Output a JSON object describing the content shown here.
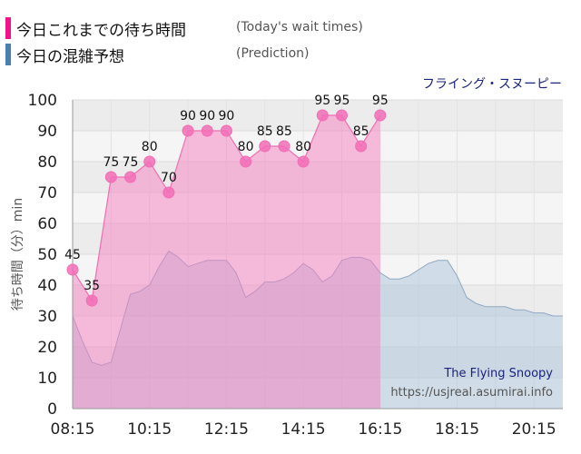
{
  "legend": {
    "actual_jp": "今日これまでの待ち時間",
    "actual_en": "(Today's wait times)",
    "actual_color": "#f0138a",
    "prediction_jp": "今日の混雑予想",
    "prediction_en": "(Prediction)",
    "prediction_color": "#4a7fb0"
  },
  "attraction_jp": "フライング・スヌーピー",
  "watermark": {
    "name": "The Flying Snoopy",
    "url": "https://usjreal.asumirai.info"
  },
  "chart_data": {
    "type": "area",
    "ylabel": "待ち時間（分）min",
    "ylim": [
      0,
      100
    ],
    "yticks": [
      0,
      10,
      20,
      30,
      40,
      50,
      60,
      70,
      80,
      90,
      100
    ],
    "xlim": [
      "08:15",
      "21:00"
    ],
    "xticks": [
      "08:15",
      "10:15",
      "12:15",
      "14:15",
      "16:15",
      "18:15",
      "20:15"
    ],
    "grid": true,
    "series": [
      {
        "name": "今日これまでの待ち時間",
        "color": "#f57ec0",
        "x": [
          "08:15",
          "08:45",
          "09:15",
          "09:45",
          "10:15",
          "10:45",
          "11:15",
          "11:45",
          "12:15",
          "12:45",
          "13:15",
          "13:45",
          "14:15",
          "14:45",
          "15:15",
          "15:45",
          "16:15"
        ],
        "values": [
          45,
          35,
          75,
          75,
          80,
          70,
          90,
          90,
          90,
          80,
          85,
          85,
          80,
          95,
          95,
          85,
          95
        ],
        "data_labels": [
          "45",
          "35",
          "75",
          "75",
          "80",
          "70",
          "90",
          "90",
          "90",
          "80",
          "85",
          "85",
          "80",
          "95",
          "95",
          "85",
          "95"
        ]
      },
      {
        "name": "今日の混雑予想",
        "color": "#b0c6da",
        "x": [
          "08:15",
          "08:30",
          "08:45",
          "09:00",
          "09:15",
          "09:30",
          "09:45",
          "10:00",
          "10:15",
          "10:30",
          "10:45",
          "11:00",
          "11:15",
          "11:30",
          "11:45",
          "12:00",
          "12:15",
          "12:30",
          "12:45",
          "13:00",
          "13:15",
          "13:30",
          "13:45",
          "14:00",
          "14:15",
          "14:30",
          "14:45",
          "15:00",
          "15:15",
          "15:30",
          "15:45",
          "16:00",
          "16:15",
          "16:30",
          "16:45",
          "17:00",
          "17:15",
          "17:30",
          "17:45",
          "18:00",
          "18:15",
          "18:30",
          "18:45",
          "19:00",
          "19:15",
          "19:30",
          "19:45",
          "20:00",
          "20:15",
          "20:30",
          "20:45",
          "21:00"
        ],
        "values": [
          30,
          22,
          15,
          14,
          15,
          26,
          37,
          38,
          40,
          46,
          51,
          49,
          46,
          47,
          48,
          48,
          48,
          44,
          36,
          38,
          41,
          41,
          42,
          44,
          47,
          45,
          41,
          43,
          48,
          49,
          49,
          48,
          44,
          42,
          42,
          43,
          45,
          47,
          48,
          48,
          43,
          36,
          34,
          33,
          33,
          33,
          32,
          32,
          31,
          31,
          30,
          30
        ]
      }
    ]
  }
}
